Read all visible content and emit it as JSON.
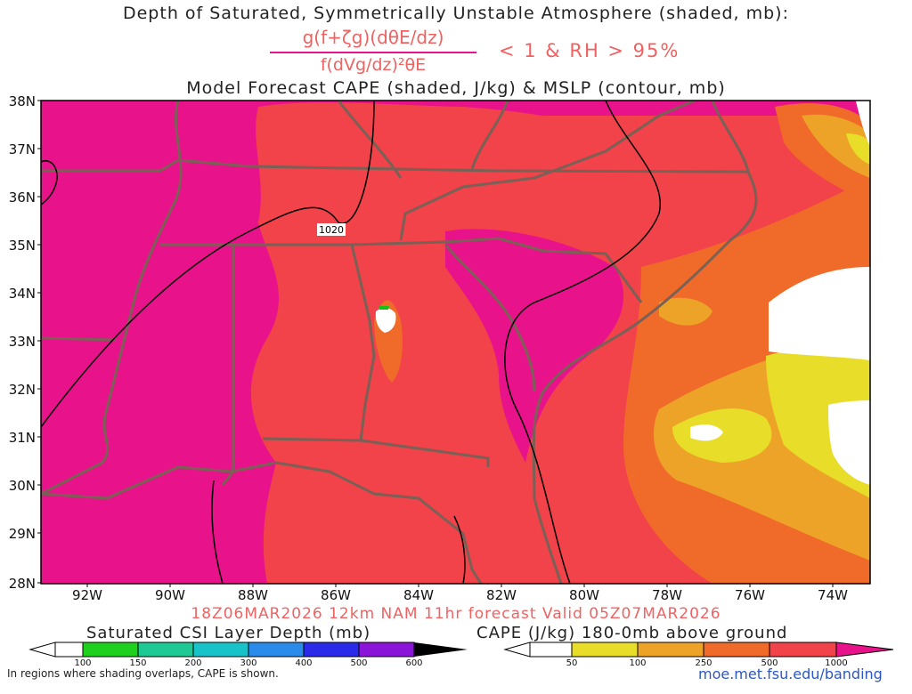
{
  "titles": {
    "line1": "Depth of Saturated, Symmetrically Unstable Atmosphere (shaded, mb):",
    "numerator": "g(f+ζg)(dθE/dz)",
    "denominator": "f(dVg/dz)²θE",
    "condition": "< 1 & RH > 95%",
    "line3": "Model Forecast CAPE (shaded, J/kg) & MSLP (contour, mb)"
  },
  "map": {
    "lat_labels": [
      "38N",
      "37N",
      "36N",
      "35N",
      "34N",
      "33N",
      "32N",
      "31N",
      "30N",
      "29N",
      "28N"
    ],
    "lon_labels": [
      "92W",
      "90W",
      "88W",
      "86W",
      "84W",
      "82W",
      "80W",
      "78W",
      "76W",
      "74W"
    ],
    "isobar_label": "1020",
    "colors": {
      "cape_high": "#e8138b",
      "cape_500": "#f2424a",
      "cape_250": "#f06a2a",
      "cape_100": "#eda327",
      "cape_50": "#e8de2a",
      "border": "#7a6055",
      "isobar": "#000000"
    }
  },
  "footer": {
    "run_info": "18Z06MAR2026 12km NAM 11hr forecast Valid 05Z07MAR2026",
    "csi_title": "Saturated CSI Layer Depth (mb)",
    "csi_ticks": [
      "100",
      "150",
      "200",
      "300",
      "400",
      "500",
      "600"
    ],
    "cape_title": "CAPE (J/kg) 180-0mb above ground",
    "cape_ticks": [
      "50",
      "100",
      "250",
      "500",
      "1000"
    ],
    "note": "In regions where shading overlaps, CAPE is shown.",
    "url": "moe.met.fsu.edu/banding"
  }
}
